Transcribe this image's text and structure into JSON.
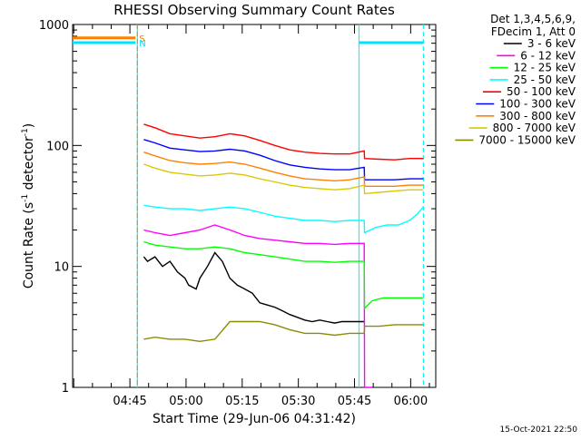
{
  "chart_data": {
    "type": "line",
    "title": "RHESSI Observing Summary Count Rates",
    "xlabel": "Start Time (29-Jun-06 04:31:42)",
    "ylabel_main": "Count Rate (s",
    "ylabel_sup1": "-1",
    "ylabel_mid": " detector",
    "ylabel_sup2": "-1",
    "ylabel_end": ")",
    "y_scale": "log",
    "ylim": [
      1,
      1000
    ],
    "xlim_minutes": [
      0,
      97
    ],
    "x_ticks": [
      {
        "t": 15.3,
        "label": "04:45"
      },
      {
        "t": 30.3,
        "label": "05:00"
      },
      {
        "t": 45.3,
        "label": "05:15"
      },
      {
        "t": 60.3,
        "label": "05:30"
      },
      {
        "t": 75.3,
        "label": "05:45"
      },
      {
        "t": 90.3,
        "label": "06:00"
      }
    ],
    "y_ticks": [
      {
        "v": 1,
        "label": "1"
      },
      {
        "v": 10,
        "label": "10"
      },
      {
        "v": 100,
        "label": "100"
      },
      {
        "v": 1000,
        "label": "1000"
      }
    ],
    "legend": {
      "placement": "right",
      "header": [
        "Det 1,3,4,5,6,9,",
        "FDecim 1, Att 0"
      ]
    },
    "series": [
      {
        "name": "3 - 6 keV",
        "color": "#000000",
        "x": [
          19,
          20,
          22,
          24,
          26,
          28,
          30,
          31,
          33,
          34,
          36,
          38,
          40,
          42,
          44,
          46,
          48,
          50,
          52,
          54,
          56,
          58,
          60,
          62,
          64,
          66,
          68,
          70,
          72,
          74,
          76,
          77.9
        ],
        "values": [
          12,
          11,
          12,
          10,
          11,
          9,
          8,
          7,
          6.5,
          8,
          10,
          13,
          11,
          8,
          7,
          6.5,
          6,
          5,
          4.8,
          4.6,
          4.3,
          4,
          3.8,
          3.6,
          3.5,
          3.6,
          3.5,
          3.4,
          3.5,
          3.5,
          3.5,
          3.5
        ]
      },
      {
        "name": "6 - 12 keV",
        "color": "#ff00ff",
        "x": [
          19,
          22,
          26,
          30,
          34,
          38,
          42,
          46,
          50,
          54,
          58,
          62,
          66,
          70,
          74,
          77.9,
          78,
          80
        ],
        "values": [
          20,
          19,
          18,
          19,
          20,
          22,
          20,
          18,
          17,
          16.5,
          16,
          15.5,
          15.5,
          15.2,
          15.5,
          15.5,
          1,
          1
        ]
      },
      {
        "name": "12 - 25 keV",
        "color": "#00ff00",
        "x": [
          19,
          22,
          26,
          30,
          34,
          38,
          42,
          46,
          50,
          54,
          58,
          62,
          66,
          70,
          74,
          77.9,
          78,
          80,
          83,
          86,
          90,
          93.7
        ],
        "values": [
          16,
          15,
          14.5,
          14,
          14,
          14.5,
          14,
          13,
          12.5,
          12,
          11.5,
          11,
          11,
          10.8,
          11,
          11,
          4.5,
          5.2,
          5.5,
          5.5,
          5.5,
          5.5
        ]
      },
      {
        "name": "25 - 50 keV",
        "color": "#00ffff",
        "x": [
          19,
          22,
          26,
          30,
          34,
          38,
          42,
          46,
          50,
          54,
          58,
          62,
          66,
          70,
          74,
          77.9,
          78,
          81,
          84,
          87,
          90,
          92,
          93.7
        ],
        "values": [
          32,
          31,
          30,
          30,
          29,
          30,
          31,
          30,
          28,
          26,
          25,
          24,
          24,
          23.5,
          24,
          24,
          19,
          21,
          22,
          22,
          24,
          27,
          31
        ]
      },
      {
        "name": "50 - 100 keV",
        "color": "#ff0000",
        "x": [
          19,
          22,
          26,
          30,
          34,
          38,
          42,
          46,
          50,
          54,
          58,
          62,
          66,
          70,
          74,
          77.9,
          78,
          82,
          86,
          90,
          93.7
        ],
        "values": [
          150,
          140,
          125,
          120,
          115,
          118,
          125,
          120,
          110,
          100,
          92,
          88,
          86,
          85,
          85,
          90,
          78,
          77,
          76,
          78,
          78
        ]
      },
      {
        "name": "100 - 300 keV",
        "color": "#0000ff",
        "x": [
          19,
          22,
          26,
          30,
          34,
          38,
          42,
          46,
          50,
          54,
          58,
          62,
          66,
          70,
          74,
          77.9,
          78,
          82,
          86,
          90,
          93.7
        ],
        "values": [
          112,
          105,
          95,
          92,
          89,
          90,
          93,
          90,
          83,
          75,
          69,
          66,
          64,
          63,
          63,
          66,
          52,
          52,
          52,
          53,
          53
        ]
      },
      {
        "name": "300 - 800 keV",
        "color": "#ff8000",
        "x": [
          19,
          22,
          26,
          30,
          34,
          38,
          42,
          46,
          50,
          54,
          58,
          62,
          66,
          70,
          74,
          77.9,
          78,
          82,
          86,
          90,
          93.7
        ],
        "values": [
          88,
          82,
          75,
          72,
          70,
          71,
          73,
          70,
          65,
          60,
          56,
          53,
          52,
          51,
          52,
          55,
          46,
          46,
          46,
          47,
          47
        ]
      },
      {
        "name": "800 - 7000 keV",
        "color": "#dcc800",
        "x": [
          19,
          22,
          26,
          30,
          34,
          38,
          42,
          46,
          50,
          54,
          58,
          62,
          66,
          70,
          74,
          77.9,
          78,
          82,
          86,
          90,
          93.7
        ],
        "values": [
          70,
          65,
          60,
          58,
          56,
          57,
          59,
          57,
          53,
          50,
          47,
          45,
          44,
          43,
          44,
          47,
          40,
          41,
          42,
          43,
          43
        ]
      },
      {
        "name": "7000 - 15000 keV",
        "color": "#8c8c00",
        "x": [
          19,
          22,
          26,
          30,
          34,
          38,
          42,
          46,
          50,
          54,
          58,
          62,
          66,
          70,
          74,
          77.9,
          78,
          82,
          86,
          90,
          93.7
        ],
        "values": [
          2.5,
          2.6,
          2.5,
          2.5,
          2.4,
          2.5,
          3.5,
          3.5,
          3.5,
          3.3,
          3,
          2.8,
          2.8,
          2.7,
          2.8,
          2.8,
          3.2,
          3.2,
          3.3,
          3.3,
          3.3
        ]
      }
    ],
    "state_bars": [
      {
        "label": "S",
        "color": "#ff8000",
        "x": [
          0,
          16.8
        ],
        "y_frac": 0.963
      },
      {
        "label": "N",
        "color": "#00e0ff",
        "x": [
          0,
          16.8
        ],
        "y_frac": 0.95
      },
      {
        "label": "",
        "color": "#00e0ff",
        "x": [
          76.5,
          93.7
        ],
        "y_frac": 0.95
      }
    ],
    "vertical_lines": [
      {
        "t": 17.3,
        "color": "#00ffff",
        "style": "solid"
      },
      {
        "t": 17.3,
        "color": "#ff8000",
        "style": "dashed"
      },
      {
        "t": 76.5,
        "color": "#00ffff",
        "style": "solid"
      },
      {
        "t": 93.7,
        "color": "#00ffff",
        "style": "dashed"
      }
    ],
    "footer_timestamp": "15-Oct-2021 22:50"
  }
}
